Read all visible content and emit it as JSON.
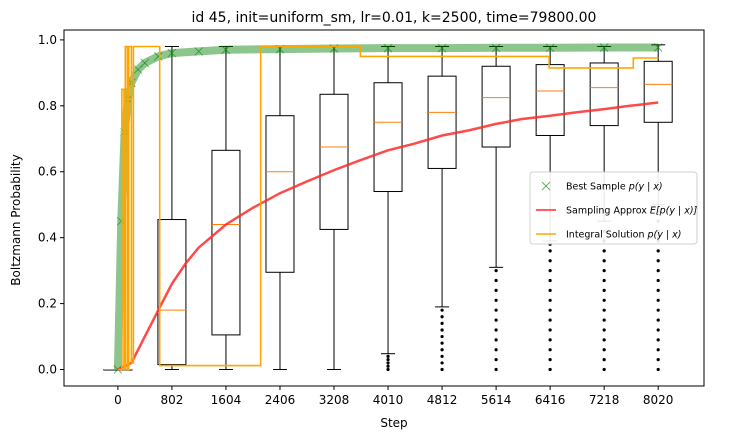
{
  "chart_data": {
    "type": "line",
    "title": "id 45, init=uniform_sm, lr=0.01, k=2500, time=79800.00",
    "xlabel": "Step",
    "ylabel": "Boltzmann Probability",
    "xticks": [
      0,
      802,
      1604,
      2406,
      3208,
      4010,
      4812,
      5614,
      6416,
      7218,
      8020
    ],
    "yticks": [
      0.0,
      0.2,
      0.4,
      0.6,
      0.8,
      1.0
    ],
    "ytick_labels": [
      "0.0",
      "0.2",
      "0.4",
      "0.6",
      "0.8",
      "1.0"
    ],
    "xlim": [
      -800,
      8700
    ],
    "ylim": [
      -0.05,
      1.03
    ],
    "legend_position": "center-right",
    "colors": {
      "best": "#008000",
      "approx": "#ff2a2a",
      "integral": "#ffa500",
      "box": "#000000",
      "median": "#ff7f0e"
    },
    "series": [
      {
        "name": "Best Sample $p(y \\mid x)$",
        "label_prefix": "Best Sample ",
        "label_math": "p(y | x)",
        "kind": "scatter",
        "x": [
          0,
          50,
          100,
          150,
          200,
          300,
          400,
          600,
          800,
          1200,
          1600,
          2406,
          3208,
          4010,
          4812,
          5614,
          6416,
          7218,
          8020
        ],
        "y": [
          0.0,
          0.45,
          0.72,
          0.82,
          0.87,
          0.91,
          0.93,
          0.95,
          0.96,
          0.965,
          0.97,
          0.972,
          0.974,
          0.975,
          0.975,
          0.976,
          0.976,
          0.977,
          0.977
        ]
      },
      {
        "name": "Sampling Approx $E[p(y \\mid x)]$",
        "label_prefix": "Sampling Approx ",
        "label_math": "E[p(y | x)]",
        "kind": "line",
        "x": [
          0,
          200,
          400,
          600,
          802,
          1000,
          1200,
          1604,
          2000,
          2406,
          2800,
          3208,
          3600,
          4010,
          4400,
          4812,
          5200,
          5614,
          6000,
          6416,
          6800,
          7218,
          7600,
          8020
        ],
        "y": [
          0.0,
          0.02,
          0.1,
          0.18,
          0.26,
          0.32,
          0.37,
          0.44,
          0.49,
          0.535,
          0.57,
          0.605,
          0.635,
          0.665,
          0.685,
          0.71,
          0.725,
          0.745,
          0.76,
          0.77,
          0.78,
          0.79,
          0.8,
          0.81
        ]
      },
      {
        "name": "Integral Solution $p(y \\mid x)$",
        "label_prefix": "Integral Solution ",
        "label_math": "p(y | x)",
        "kind": "step",
        "x": [
          0,
          60,
          60,
          90,
          90,
          110,
          110,
          140,
          140,
          160,
          160,
          200,
          200,
          230,
          230,
          340,
          340,
          620,
          620,
          2120,
          2120,
          3600,
          3600,
          6400,
          6400,
          7650,
          7650,
          8020
        ],
        "y": [
          0.0,
          0.0,
          0.85,
          0.85,
          0.0,
          0.0,
          0.98,
          0.98,
          0.0,
          0.0,
          0.98,
          0.98,
          0.02,
          0.02,
          0.98,
          0.98,
          0.98,
          0.98,
          0.012,
          0.012,
          0.98,
          0.98,
          0.95,
          0.95,
          0.915,
          0.915,
          0.945,
          0.945
        ]
      }
    ],
    "boxplots": [
      {
        "x": 0,
        "whislo": 0.0,
        "q1": 0.0,
        "median": 0.0,
        "q3": 0.0,
        "whishi": 0.0,
        "fliers": []
      },
      {
        "x": 802,
        "whislo": 0.0,
        "q1": 0.015,
        "median": 0.18,
        "q3": 0.455,
        "whishi": 0.98,
        "fliers": []
      },
      {
        "x": 1604,
        "whislo": 0.0,
        "q1": 0.105,
        "median": 0.44,
        "q3": 0.665,
        "whishi": 0.98,
        "fliers": []
      },
      {
        "x": 2406,
        "whislo": 0.0,
        "q1": 0.295,
        "median": 0.6,
        "q3": 0.77,
        "whishi": 0.98,
        "fliers": []
      },
      {
        "x": 3208,
        "whislo": 0.0,
        "q1": 0.425,
        "median": 0.675,
        "q3": 0.835,
        "whishi": 0.98,
        "fliers": []
      },
      {
        "x": 4010,
        "whislo": 0.048,
        "q1": 0.54,
        "median": 0.75,
        "q3": 0.87,
        "whishi": 0.98,
        "fliers": [
          0.0,
          0.01,
          0.02,
          0.03,
          0.04
        ]
      },
      {
        "x": 4812,
        "whislo": 0.19,
        "q1": 0.61,
        "median": 0.78,
        "q3": 0.89,
        "whishi": 0.98,
        "fliers": [
          0.0,
          0.02,
          0.04,
          0.06,
          0.08,
          0.1,
          0.12,
          0.14,
          0.16,
          0.18
        ]
      },
      {
        "x": 5614,
        "whislo": 0.31,
        "q1": 0.675,
        "median": 0.825,
        "q3": 0.92,
        "whishi": 0.98,
        "fliers": [
          0.0,
          0.03,
          0.06,
          0.09,
          0.12,
          0.15,
          0.18,
          0.21,
          0.24,
          0.27,
          0.3
        ]
      },
      {
        "x": 6416,
        "whislo": 0.39,
        "q1": 0.71,
        "median": 0.845,
        "q3": 0.925,
        "whishi": 0.98,
        "fliers": [
          0.0,
          0.03,
          0.06,
          0.09,
          0.12,
          0.15,
          0.18,
          0.21,
          0.24,
          0.27,
          0.3,
          0.33,
          0.36,
          0.38
        ]
      },
      {
        "x": 7218,
        "whislo": 0.45,
        "q1": 0.74,
        "median": 0.855,
        "q3": 0.93,
        "whishi": 0.98,
        "fliers": [
          0.0,
          0.03,
          0.06,
          0.09,
          0.12,
          0.15,
          0.18,
          0.21,
          0.24,
          0.27,
          0.3,
          0.33,
          0.36,
          0.39,
          0.42
        ]
      },
      {
        "x": 8020,
        "whislo": 0.5,
        "q1": 0.75,
        "median": 0.865,
        "q3": 0.935,
        "whishi": 0.985,
        "fliers": [
          0.0,
          0.03,
          0.06,
          0.09,
          0.12,
          0.15,
          0.18,
          0.21,
          0.24,
          0.27,
          0.3,
          0.33,
          0.36,
          0.39,
          0.42,
          0.45,
          0.48
        ]
      }
    ]
  }
}
